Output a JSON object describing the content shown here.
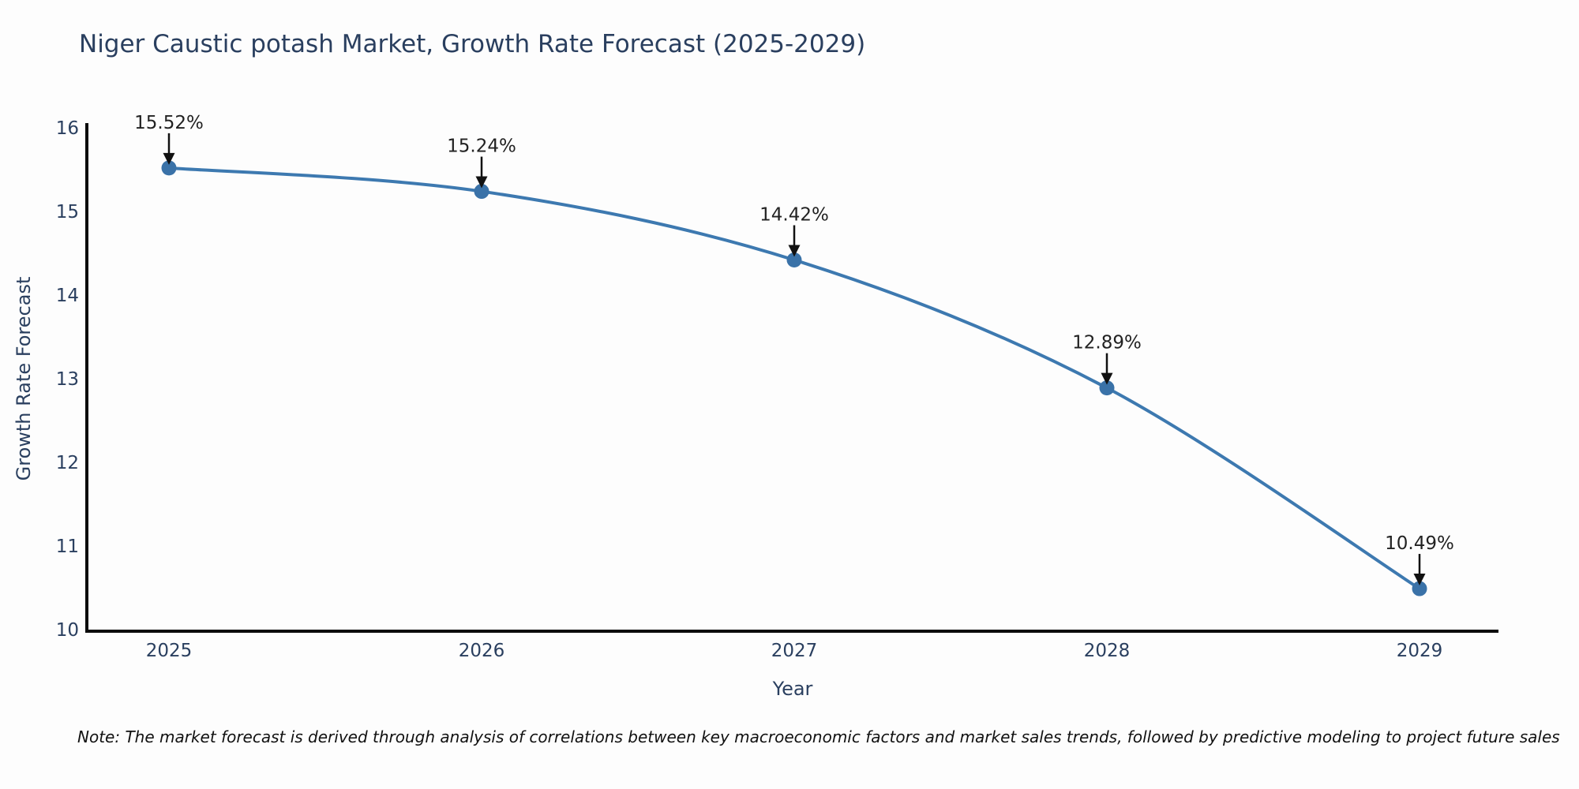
{
  "figure": {
    "title": "Niger Caustic potash Market, Growth Rate Forecast (2025-2029)",
    "note": "Note: The market forecast is derived through analysis of correlations between key macroeconomic factors and market sales trends, followed by predictive modeling to project future sales"
  },
  "chart_data": {
    "type": "line",
    "title": "Niger Caustic potash Market, Growth Rate Forecast (2025-2029)",
    "xlabel": "Year",
    "ylabel": "Growth Rate Forecast",
    "categories": [
      "2025",
      "2026",
      "2027",
      "2028",
      "2029"
    ],
    "series": [
      {
        "name": "Growth Rate Forecast",
        "values": [
          15.52,
          15.24,
          14.42,
          12.89,
          10.49
        ]
      }
    ],
    "point_labels": [
      "15.52%",
      "15.24%",
      "14.42%",
      "12.89%",
      "10.49%"
    ],
    "ylim": [
      10,
      16
    ],
    "yticks": [
      10,
      11,
      12,
      13,
      14,
      15,
      16
    ],
    "grid": false,
    "legend_position": "none",
    "annotations_have_arrows": true,
    "colors": {
      "line": "#3d79b0",
      "marker": "#3a72a8",
      "axis": "#0b0b0b",
      "tick_text": "#2a3f5f",
      "annotation_text": "#222222",
      "arrow": "#111111",
      "background": "#fdfdfd"
    }
  }
}
